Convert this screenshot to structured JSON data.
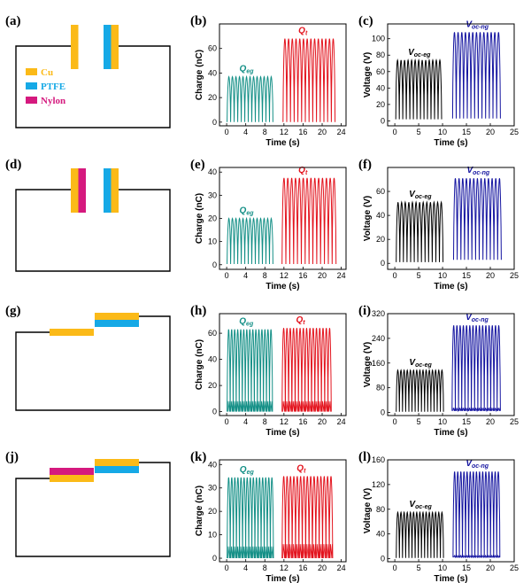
{
  "colors": {
    "cu": "#FBBA18",
    "ptfe": "#16A9E6",
    "nylon": "#D5197E",
    "teal": "#138F86",
    "red": "#E3131D",
    "black": "#000000",
    "blue": "#1414A0"
  },
  "legend": [
    {
      "label": "Cu",
      "color": "#FBBA18"
    },
    {
      "label": "PTFE",
      "color": "#16A9E6"
    },
    {
      "label": "Nylon",
      "color": "#D5197E"
    }
  ],
  "schematics": [
    {
      "letter": "(a)",
      "config": "contact-separation",
      "left_layers": [
        "cu"
      ],
      "right_layers": [
        "ptfe",
        "cu"
      ]
    },
    {
      "letter": "(d)",
      "config": "contact-separation",
      "left_layers": [
        "cu",
        "nylon"
      ],
      "right_layers": [
        "ptfe",
        "cu"
      ]
    },
    {
      "letter": "(g)",
      "config": "lateral-sliding",
      "left_layers": [
        "cu"
      ],
      "right_layers": [
        "cu",
        "ptfe"
      ]
    },
    {
      "letter": "(j)",
      "config": "lateral-sliding",
      "left_layers": [
        "nylon",
        "cu"
      ],
      "right_layers": [
        "cu",
        "ptfe"
      ]
    }
  ],
  "chart_data": [
    {
      "letter": "(b)",
      "type": "line",
      "xlabel": "Time (s)",
      "ylabel": "Charge (nC)",
      "xlim": [
        -1.5,
        25
      ],
      "ylim": [
        -3,
        80
      ],
      "xticks": [
        0,
        4,
        8,
        12,
        16,
        20,
        24
      ],
      "yticks": [
        0,
        20,
        40,
        60
      ],
      "series": [
        {
          "name": "Qeg",
          "label_main": "Q",
          "label_sub": "eg",
          "color": "#138F86",
          "x_start": 0.1,
          "x_end": 9.7,
          "peaks": 13,
          "peak": 37,
          "base": 0,
          "inner": null
        },
        {
          "name": "Qt",
          "label_main": "Q",
          "label_sub": "t",
          "color": "#E3131D",
          "x_start": 11.8,
          "x_end": 22.7,
          "peaks": 14,
          "peak": 68,
          "base": 0,
          "inner": null
        }
      ]
    },
    {
      "letter": "(c)",
      "type": "line",
      "xlabel": "Time (s)",
      "ylabel": "Voltage (V)",
      "xlim": [
        -1.5,
        25
      ],
      "ylim": [
        -6,
        118
      ],
      "xticks": [
        0,
        5,
        10,
        15,
        20,
        25
      ],
      "yticks": [
        0,
        20,
        40,
        60,
        80,
        100
      ],
      "series": [
        {
          "name": "Voc-eg",
          "label_main": "V",
          "label_sub": "oc-eg",
          "color": "#000000",
          "x_start": 0.2,
          "x_end": 9.8,
          "peaks": 13,
          "peak": 74,
          "base": 2,
          "inner": null
        },
        {
          "name": "Voc-ng",
          "label_main": "V",
          "label_sub": "oc-ng",
          "color": "#1414A0",
          "x_start": 12.1,
          "x_end": 22.1,
          "peaks": 13,
          "peak": 108,
          "base": 3,
          "inner": null
        }
      ]
    },
    {
      "letter": "(e)",
      "type": "line",
      "xlabel": "Time (s)",
      "ylabel": "Charge (nC)",
      "xlim": [
        -1.5,
        25
      ],
      "ylim": [
        -2,
        42
      ],
      "xticks": [
        0,
        4,
        8,
        12,
        16,
        20,
        24
      ],
      "yticks": [
        0,
        10,
        20,
        30,
        40
      ],
      "series": [
        {
          "name": "Qeg",
          "label_main": "Q",
          "label_sub": "eg",
          "color": "#138F86",
          "x_start": 0.1,
          "x_end": 9.7,
          "peaks": 13,
          "peak": 20,
          "base": 0.3,
          "inner": null
        },
        {
          "name": "Qt",
          "label_main": "Q",
          "label_sub": "t",
          "color": "#E3131D",
          "x_start": 11.6,
          "x_end": 22.9,
          "peaks": 14,
          "peak": 37.5,
          "base": 0.3,
          "inner": null
        }
      ]
    },
    {
      "letter": "(f)",
      "type": "line",
      "xlabel": "Time (s)",
      "ylabel": "Voltage (V)",
      "xlim": [
        -1.5,
        25
      ],
      "ylim": [
        -5,
        80
      ],
      "xticks": [
        0,
        5,
        10,
        15,
        20,
        25
      ],
      "yticks": [
        0,
        20,
        40,
        60
      ],
      "series": [
        {
          "name": "Voc-eg",
          "label_main": "V",
          "label_sub": "oc-eg",
          "color": "#000000",
          "x_start": 0.3,
          "x_end": 10.1,
          "peaks": 13,
          "peak": 51,
          "base": 1,
          "inner": null
        },
        {
          "name": "Voc-ng",
          "label_main": "V",
          "label_sub": "oc-ng",
          "color": "#1414A0",
          "x_start": 12.3,
          "x_end": 22.3,
          "peaks": 13,
          "peak": 71,
          "base": 3,
          "inner": null
        }
      ]
    },
    {
      "letter": "(h)",
      "type": "line",
      "xlabel": "Time (s)",
      "ylabel": "Charge (nC)",
      "xlim": [
        -1.5,
        25
      ],
      "ylim": [
        -3,
        75
      ],
      "xticks": [
        0,
        4,
        8,
        12,
        16,
        20,
        24
      ],
      "yticks": [
        0,
        20,
        40,
        60
      ],
      "series": [
        {
          "name": "Qeg",
          "label_main": "Q",
          "label_sub": "eg",
          "color": "#138F86",
          "x_start": 0.1,
          "x_end": 9.6,
          "peaks": 15,
          "peak": 63,
          "base": 0,
          "inner": 8
        },
        {
          "name": "Qt",
          "label_main": "Q",
          "label_sub": "t",
          "color": "#E3131D",
          "x_start": 11.6,
          "x_end": 21.9,
          "peaks": 15,
          "peak": 64,
          "base": 0,
          "inner": 8
        }
      ]
    },
    {
      "letter": "(i)",
      "type": "line",
      "xlabel": "Time (s)",
      "ylabel": "Voltage (V)",
      "xlim": [
        -1.5,
        25
      ],
      "ylim": [
        -10,
        320
      ],
      "xticks": [
        0,
        5,
        10,
        15,
        20,
        25
      ],
      "yticks": [
        0,
        80,
        160,
        240,
        320
      ],
      "series": [
        {
          "name": "Voc-eg",
          "label_main": "V",
          "label_sub": "oc-eg",
          "color": "#000000",
          "x_start": 0.3,
          "x_end": 10.2,
          "peaks": 15,
          "peak": 137,
          "base": 2,
          "inner": null
        },
        {
          "name": "Voc-ng",
          "label_main": "V",
          "label_sub": "oc-ng",
          "color": "#1414A0",
          "x_start": 12.0,
          "x_end": 22.1,
          "peaks": 15,
          "peak": 282,
          "base": 5,
          "inner": 15
        }
      ]
    },
    {
      "letter": "(k)",
      "type": "line",
      "xlabel": "Time (s)",
      "ylabel": "Charge (nC)",
      "xlim": [
        -1.5,
        25
      ],
      "ylim": [
        -1.5,
        42
      ],
      "xticks": [
        0,
        4,
        8,
        12,
        16,
        20,
        24
      ],
      "yticks": [
        0,
        10,
        20,
        30,
        40
      ],
      "series": [
        {
          "name": "Qeg",
          "label_main": "Q",
          "label_sub": "eg",
          "color": "#138F86",
          "x_start": 0.1,
          "x_end": 9.8,
          "peaks": 15,
          "peak": 34.5,
          "base": 0,
          "inner": 5
        },
        {
          "name": "Qt",
          "label_main": "Q",
          "label_sub": "t",
          "color": "#E3131D",
          "x_start": 11.6,
          "x_end": 22.2,
          "peaks": 15,
          "peak": 35,
          "base": 0,
          "inner": 6
        }
      ]
    },
    {
      "letter": "(l)",
      "type": "line",
      "xlabel": "Time (s)",
      "ylabel": "Voltage (V)",
      "xlim": [
        -1.5,
        25
      ],
      "ylim": [
        -5,
        160
      ],
      "xticks": [
        0,
        5,
        10,
        15,
        20,
        25
      ],
      "yticks": [
        0,
        40,
        80,
        120,
        160
      ],
      "series": [
        {
          "name": "Voc-eg",
          "label_main": "V",
          "label_sub": "oc-eg",
          "color": "#000000",
          "x_start": 0.3,
          "x_end": 10.2,
          "peaks": 15,
          "peak": 75,
          "base": 1,
          "inner": null
        },
        {
          "name": "Voc-ng",
          "label_main": "V",
          "label_sub": "oc-ng",
          "color": "#1414A0",
          "x_start": 12.2,
          "x_end": 22.0,
          "peaks": 15,
          "peak": 141,
          "base": 2,
          "inner": 5
        }
      ]
    }
  ]
}
